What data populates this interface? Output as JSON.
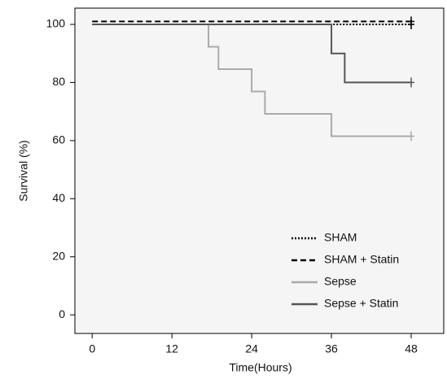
{
  "chart_data": {
    "type": "step",
    "x_label": "Time(Hours)",
    "y_label": "Survival (%)",
    "xlim": [
      -2.6,
      52.9
    ],
    "ylim": [
      -6.4,
      105.6
    ],
    "xticks": [
      0,
      12,
      24,
      36,
      48
    ],
    "yticks": [
      0,
      20,
      40,
      60,
      80,
      100
    ],
    "legend": "lower right",
    "series": [
      {
        "name": "SHAM",
        "color": "#000000",
        "dash": "dotted",
        "x": [
          0,
          48
        ],
        "values": [
          100,
          100
        ]
      },
      {
        "name": "SHAM + Statin",
        "color": "#000000",
        "dash": "dashed",
        "x": [
          0,
          48
        ],
        "values": [
          101,
          101
        ]
      },
      {
        "name": "Sepse",
        "color": "#aaaaaa",
        "dash": "solid",
        "x": [
          0,
          17.5,
          19,
          24,
          26,
          36,
          48
        ],
        "values": [
          100,
          92.3,
          84.6,
          76.9,
          69.2,
          61.5,
          61.5
        ]
      },
      {
        "name": "Sepse + Statin",
        "color": "#555555",
        "dash": "solid",
        "x": [
          0,
          36,
          38,
          48
        ],
        "values": [
          100,
          90,
          80,
          80
        ]
      }
    ]
  }
}
